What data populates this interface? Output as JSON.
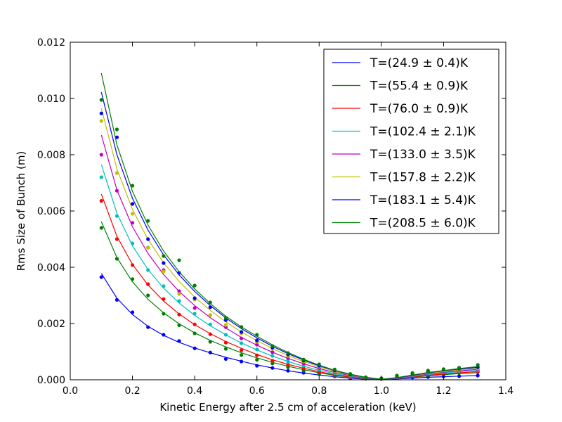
{
  "chart_data": {
    "type": "line",
    "xlabel": "Kinetic Energy after 2.5 cm of acceleration (keV)",
    "ylabel": "Rms Size of Bunch (m)",
    "xlim": [
      0.0,
      1.4
    ],
    "ylim": [
      0.0,
      0.012
    ],
    "x_ticks": [
      "0.0",
      "0.2",
      "0.4",
      "0.6",
      "0.8",
      "1.0",
      "1.2",
      "1.4"
    ],
    "y_ticks": [
      "0.000",
      "0.002",
      "0.004",
      "0.006",
      "0.008",
      "0.010",
      "0.012"
    ],
    "grid": false,
    "legend_position": "top-right",
    "x": [
      0.1,
      0.15,
      0.2,
      0.25,
      0.3,
      0.35,
      0.4,
      0.45,
      0.5,
      0.55,
      0.6,
      0.65,
      0.7,
      0.75,
      0.8,
      0.85,
      0.9,
      0.95,
      1.0,
      1.05,
      1.1,
      1.15,
      1.2,
      1.25,
      1.31
    ],
    "series": [
      {
        "name": "T=(24.9 ± 0.4)K",
        "color": "#0000ff",
        "points": [
          0.00365,
          0.00284,
          0.0024,
          0.00187,
          0.0016,
          0.00138,
          0.00112,
          0.00097,
          0.00074,
          0.00065,
          0.0005,
          0.00042,
          0.00032,
          0.00025,
          0.0002,
          0.00012,
          5e-05,
          5e-05,
          3e-05,
          5e-05,
          8e-05,
          0.0001,
          0.00012,
          0.00013,
          0.00015
        ],
        "fit": [
          0.00378,
          0.0029,
          0.00232,
          0.0019,
          0.00158,
          0.00133,
          0.00113,
          0.00096,
          0.0008,
          0.00066,
          0.00053,
          0.00042,
          0.00032,
          0.00024,
          0.00017,
          0.00011,
          6e-05,
          2e-05,
          0.0,
          3e-05,
          6e-05,
          9e-05,
          0.00011,
          0.00013,
          0.00015
        ]
      },
      {
        "name": "T=(55.4 ± 0.9)K",
        "color": "#008000",
        "points": [
          0.0054,
          0.0043,
          0.00358,
          0.003,
          0.00235,
          0.00194,
          0.00165,
          0.00135,
          0.0011,
          0.00088,
          0.00071,
          0.00058,
          0.00045,
          0.00032,
          0.00022,
          0.00014,
          8e-05,
          4e-05,
          4e-05,
          6e-05,
          0.00012,
          0.00017,
          0.0002,
          0.00024,
          0.00027
        ],
        "fit": [
          0.00562,
          0.00434,
          0.00348,
          0.00286,
          0.00238,
          0.00199,
          0.00167,
          0.0014,
          0.00117,
          0.00096,
          0.00078,
          0.00062,
          0.00048,
          0.00036,
          0.00025,
          0.00016,
          9e-05,
          3e-05,
          0.0,
          4e-05,
          9e-05,
          0.00014,
          0.00018,
          0.00022,
          0.00025
        ]
      },
      {
        "name": "T=(76.0 ± 0.9)K",
        "color": "#ff0000",
        "points": [
          0.00636,
          0.005,
          0.00408,
          0.0034,
          0.00287,
          0.00232,
          0.00197,
          0.00162,
          0.00132,
          0.00105,
          0.00087,
          0.00068,
          0.00053,
          0.0004,
          0.00028,
          0.00018,
          9e-05,
          4e-05,
          3e-05,
          7e-05,
          0.00014,
          0.0002,
          0.00024,
          0.00027,
          0.0003
        ],
        "fit": [
          0.0066,
          0.0051,
          0.0041,
          0.00337,
          0.0028,
          0.00234,
          0.00196,
          0.00164,
          0.00136,
          0.00112,
          0.0009,
          0.00071,
          0.00055,
          0.00041,
          0.00029,
          0.00018,
          0.0001,
          4e-05,
          0.0,
          4e-05,
          0.0001,
          0.00016,
          0.00021,
          0.00025,
          0.00029
        ]
      },
      {
        "name": "T=(102.4 ± 2.1)K",
        "color": "#00bfbf",
        "points": [
          0.0072,
          0.00582,
          0.00485,
          0.0039,
          0.00333,
          0.0028,
          0.00235,
          0.00197,
          0.0016,
          0.0013,
          0.00108,
          0.00085,
          0.00065,
          0.0005,
          0.00036,
          0.00023,
          0.00012,
          5e-05,
          4e-05,
          9e-05,
          0.00017,
          0.00023,
          0.00028,
          0.00031,
          0.00034
        ],
        "fit": [
          0.00765,
          0.00592,
          0.00476,
          0.00392,
          0.00326,
          0.00273,
          0.00229,
          0.00192,
          0.0016,
          0.00131,
          0.00106,
          0.00084,
          0.00065,
          0.00048,
          0.00034,
          0.00022,
          0.00012,
          5e-05,
          1e-05,
          5e-05,
          0.00012,
          0.00019,
          0.00024,
          0.00029,
          0.00033
        ]
      },
      {
        "name": "T=(133.0 ± 3.5)K",
        "color": "#bf00bf",
        "points": [
          0.008,
          0.00672,
          0.00558,
          0.0047,
          0.0039,
          0.00315,
          0.00255,
          0.0023,
          0.00187,
          0.00147,
          0.00125,
          0.00098,
          0.00076,
          0.00058,
          0.00042,
          0.00027,
          0.00014,
          6e-05,
          4e-05,
          0.00011,
          0.00019,
          0.00026,
          0.00031,
          0.00035,
          0.00037
        ],
        "fit": [
          0.0087,
          0.00675,
          0.00544,
          0.00449,
          0.00374,
          0.00314,
          0.00264,
          0.00221,
          0.00184,
          0.00151,
          0.00123,
          0.00098,
          0.00076,
          0.00057,
          0.0004,
          0.00026,
          0.00015,
          6e-05,
          1e-05,
          6e-05,
          0.00014,
          0.00021,
          0.00027,
          0.00032,
          0.00037
        ]
      },
      {
        "name": "T=(157.8 ± 2.2)K",
        "color": "#bfbf00",
        "points": [
          0.0092,
          0.00735,
          0.0059,
          0.0047,
          0.00385,
          0.00305,
          0.00285,
          0.0023,
          0.00195,
          0.00165,
          0.00135,
          0.0011,
          0.00085,
          0.00065,
          0.00047,
          0.0003,
          0.00016,
          7e-05,
          5e-05,
          0.00013,
          0.00021,
          0.00028,
          0.00033,
          0.00037,
          0.0004
        ],
        "fit": [
          0.00965,
          0.0075,
          0.00605,
          0.00499,
          0.00416,
          0.0035,
          0.00294,
          0.00247,
          0.00206,
          0.0017,
          0.00139,
          0.00111,
          0.00086,
          0.00065,
          0.00046,
          0.0003,
          0.00017,
          7e-05,
          1e-05,
          7e-05,
          0.00015,
          0.00023,
          0.00029,
          0.00035,
          0.0004
        ]
      },
      {
        "name": "T=(183.1 ± 5.4)K",
        "color": "#0000ff",
        "points": [
          0.00947,
          0.00862,
          0.00625,
          0.005,
          0.00415,
          0.0038,
          0.0029,
          0.00258,
          0.00212,
          0.0017,
          0.0014,
          0.00115,
          0.0009,
          0.00068,
          0.0005,
          0.00033,
          0.00018,
          8e-05,
          5e-05,
          0.00014,
          0.00022,
          0.0003,
          0.00036,
          0.0004,
          0.00045
        ],
        "fit": [
          0.01022,
          0.008,
          0.00645,
          0.00532,
          0.00444,
          0.00373,
          0.00314,
          0.00264,
          0.0022,
          0.00182,
          0.00149,
          0.00119,
          0.00093,
          0.0007,
          0.0005,
          0.00033,
          0.00019,
          8e-05,
          1e-05,
          7e-05,
          0.00016,
          0.00025,
          0.00032,
          0.00038,
          0.00044
        ]
      },
      {
        "name": "T=(208.5 ± 6.0)K",
        "color": "#008000",
        "points": [
          0.00995,
          0.0089,
          0.0069,
          0.00565,
          0.0044,
          0.00425,
          0.00335,
          0.00275,
          0.0022,
          0.00188,
          0.0016,
          0.0012,
          0.00095,
          0.00072,
          0.00055,
          0.00037,
          0.00021,
          9e-05,
          5e-05,
          0.00015,
          0.00024,
          0.00033,
          0.00038,
          0.00043,
          0.00053
        ],
        "fit": [
          0.0109,
          0.00835,
          0.0067,
          0.0055,
          0.00458,
          0.00384,
          0.00323,
          0.00271,
          0.00226,
          0.00188,
          0.00155,
          0.00124,
          0.00097,
          0.00073,
          0.00052,
          0.00034,
          0.0002,
          9e-05,
          2e-05,
          8e-05,
          0.00017,
          0.00026,
          0.00033,
          0.0004,
          0.00047
        ]
      }
    ]
  }
}
